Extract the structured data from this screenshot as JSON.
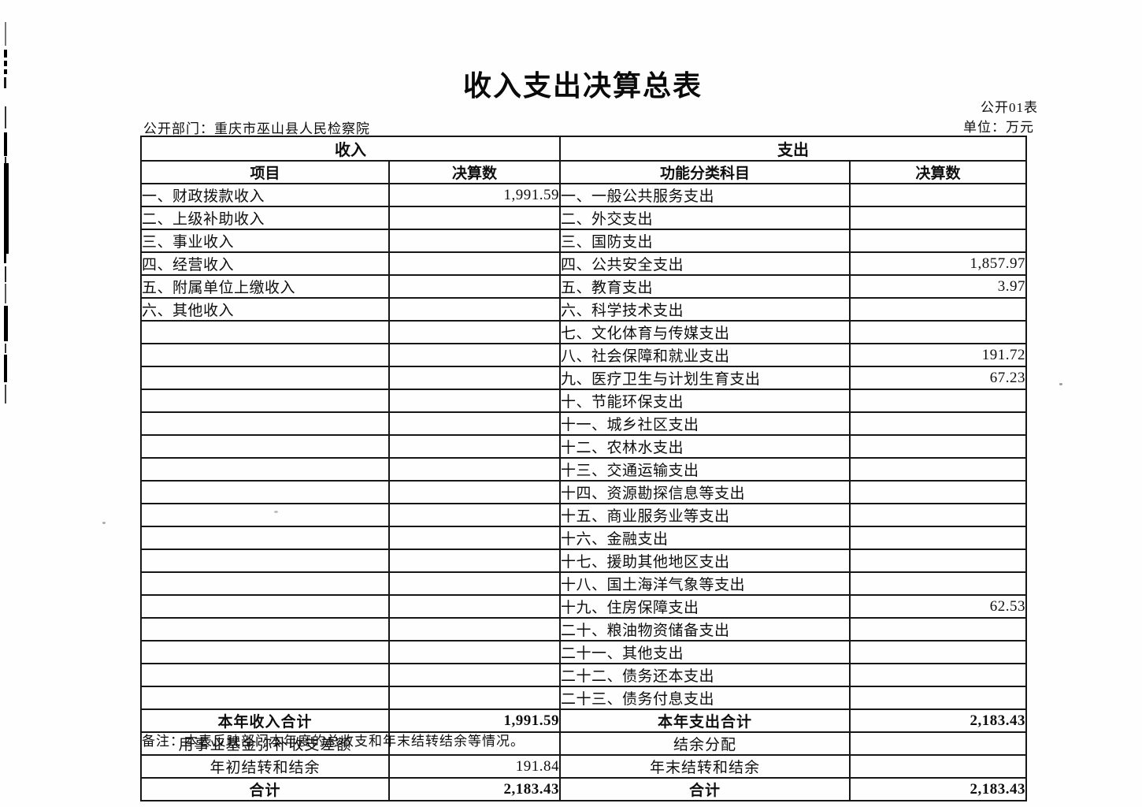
{
  "page": {
    "title": "收入支出决算总表",
    "table_code": "公开01表",
    "department_label": "公开部门：重庆市巫山县人民检察院",
    "unit_label": "单位：万元",
    "note": "备注：本表反映部门本年度的总收支和年末结转结余等情况。"
  },
  "table": {
    "group_headers": {
      "income": "收入",
      "expense": "支出"
    },
    "column_headers": {
      "income_item": "项目",
      "income_value": "决算数",
      "expense_item": "功能分类科目",
      "expense_value": "决算数"
    },
    "rows": [
      {
        "income": "一、财政拨款收入",
        "income_value": "1,991.59",
        "expense": "一、一般公共服务支出",
        "expense_value": ""
      },
      {
        "income": "二、上级补助收入",
        "income_value": "",
        "expense": "二、外交支出",
        "expense_value": ""
      },
      {
        "income": "三、事业收入",
        "income_value": "",
        "expense": "三、国防支出",
        "expense_value": ""
      },
      {
        "income": "四、经营收入",
        "income_value": "",
        "expense": "四、公共安全支出",
        "expense_value": "1,857.97"
      },
      {
        "income": "五、附属单位上缴收入",
        "income_value": "",
        "expense": "五、教育支出",
        "expense_value": "3.97"
      },
      {
        "income": "六、其他收入",
        "income_value": "",
        "expense": "六、科学技术支出",
        "expense_value": ""
      },
      {
        "income": "",
        "income_value": "",
        "expense": "七、文化体育与传媒支出",
        "expense_value": ""
      },
      {
        "income": "",
        "income_value": "",
        "expense": "八、社会保障和就业支出",
        "expense_value": "191.72"
      },
      {
        "income": "",
        "income_value": "",
        "expense": "九、医疗卫生与计划生育支出",
        "expense_value": "67.23"
      },
      {
        "income": "",
        "income_value": "",
        "expense": "十、节能环保支出",
        "expense_value": ""
      },
      {
        "income": "",
        "income_value": "",
        "expense": "十一、城乡社区支出",
        "expense_value": ""
      },
      {
        "income": "",
        "income_value": "",
        "expense": "十二、农林水支出",
        "expense_value": ""
      },
      {
        "income": "",
        "income_value": "",
        "expense": "十三、交通运输支出",
        "expense_value": ""
      },
      {
        "income": "",
        "income_value": "",
        "expense": "十四、资源勘探信息等支出",
        "expense_value": ""
      },
      {
        "income": "",
        "income_value": "",
        "expense": "十五、商业服务业等支出",
        "expense_value": ""
      },
      {
        "income": "",
        "income_value": "",
        "expense": "十六、金融支出",
        "expense_value": ""
      },
      {
        "income": "",
        "income_value": "",
        "expense": "十七、援助其他地区支出",
        "expense_value": ""
      },
      {
        "income": "",
        "income_value": "",
        "expense": "十八、国土海洋气象等支出",
        "expense_value": ""
      },
      {
        "income": "",
        "income_value": "",
        "expense": "十九、住房保障支出",
        "expense_value": "62.53"
      },
      {
        "income": "",
        "income_value": "",
        "expense": "二十、粮油物资储备支出",
        "expense_value": ""
      },
      {
        "income": "",
        "income_value": "",
        "expense": "二十一、其他支出",
        "expense_value": ""
      },
      {
        "income": "",
        "income_value": "",
        "expense": "二十二、债务还本支出",
        "expense_value": ""
      },
      {
        "income": "",
        "income_value": "",
        "expense": "二十三、债务付息支出",
        "expense_value": ""
      }
    ],
    "summary_rows": [
      {
        "income": "本年收入合计",
        "income_value": "1,991.59",
        "expense": "本年支出合计",
        "expense_value": "2,183.43",
        "bold": true
      },
      {
        "income": "用事业基金弥补收支差额",
        "income_value": "",
        "expense": "结余分配",
        "expense_value": "",
        "bold": false
      },
      {
        "income": "年初结转和结余",
        "income_value": "191.84",
        "expense": "年末结转和结余",
        "expense_value": "",
        "bold": false
      },
      {
        "income": "合计",
        "income_value": "2,183.43",
        "expense": "合计",
        "expense_value": "2,183.43",
        "bold": true
      }
    ]
  }
}
